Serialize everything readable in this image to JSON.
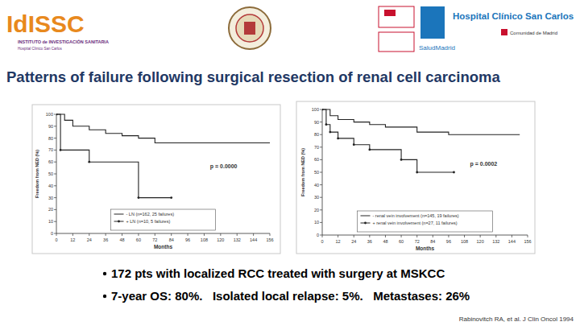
{
  "header": {
    "logo_left": "IdISSC",
    "logo_left_sub": "INSTITUTO de INVESTIGACIÓN SANITARIA",
    "logo_left_sub2": "Hospital Clínico San Carlos",
    "hospital": "Hospital Clínico San Carlos",
    "region": "Comunidad de Madrid",
    "salud": "SaludMadrid"
  },
  "slide": {
    "title": "Patterns of failure following surgical resection of renal cell carcinoma",
    "bullets": [
      "172 pts with localized RCC treated with surgery at MSKCC",
      "7-year OS: 80%.   Isolated local relapse: 5%.   Metastases: 26%"
    ],
    "citation": "Rabinovitch RA, et al. J Clin Oncol 1994"
  },
  "chart_data": [
    {
      "type": "step",
      "x_label": "Months",
      "y_label": "Freedom from NED (%)",
      "annotation": "p = 0.0000",
      "xlim": [
        0,
        156
      ],
      "ylim": [
        0,
        100
      ],
      "xticks": [
        0,
        12,
        24,
        36,
        48,
        60,
        72,
        84,
        96,
        108,
        120,
        132,
        144,
        156
      ],
      "yticks": [
        0,
        10,
        20,
        30,
        40,
        50,
        60,
        70,
        80,
        90,
        100
      ],
      "legend": "bottom",
      "series": [
        {
          "name": "- LN (n=162, 25 failures)",
          "color": "#222222",
          "marker": "none",
          "x": [
            0,
            6,
            12,
            24,
            36,
            48,
            60,
            72,
            156
          ],
          "values": [
            100,
            95,
            90,
            87,
            84,
            82,
            80,
            76,
            76
          ]
        },
        {
          "name": "+ LN (n=10, 5 failures)",
          "color": "#222222",
          "marker": "dot",
          "x": [
            0,
            3,
            24,
            60,
            84
          ],
          "values": [
            100,
            70,
            60,
            30,
            30
          ]
        }
      ]
    },
    {
      "type": "step",
      "x_label": "Months",
      "y_label": "Freedom from NED (%)",
      "annotation": "p = 0.0002",
      "xlim": [
        0,
        156
      ],
      "ylim": [
        0,
        100
      ],
      "xticks": [
        0,
        12,
        24,
        36,
        48,
        60,
        72,
        84,
        96,
        108,
        120,
        132,
        144,
        156
      ],
      "yticks": [
        0,
        10,
        20,
        30,
        40,
        50,
        60,
        70,
        80,
        90,
        100
      ],
      "legend": "bottom",
      "series": [
        {
          "name": "- renal vein involvement (n=145, 19 failures)",
          "color": "#222222",
          "marker": "none",
          "x": [
            0,
            6,
            12,
            24,
            36,
            48,
            72,
            96,
            150
          ],
          "values": [
            100,
            95,
            92,
            90,
            88,
            86,
            82,
            80,
            80
          ]
        },
        {
          "name": "+ renal vein involvement (n=27, 11 failures)",
          "color": "#222222",
          "marker": "dot",
          "x": [
            0,
            3,
            6,
            12,
            24,
            36,
            60,
            72,
            100
          ],
          "values": [
            100,
            88,
            82,
            77,
            72,
            68,
            60,
            50,
            50
          ]
        }
      ]
    }
  ]
}
